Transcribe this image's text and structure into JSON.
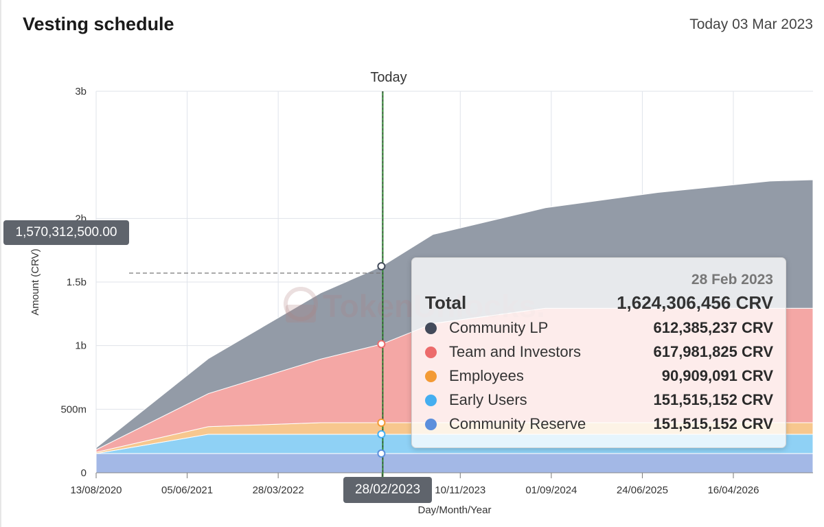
{
  "header": {
    "title": "Vesting schedule",
    "today": "Today 03 Mar 2023"
  },
  "chart_data": {
    "type": "area",
    "stacked": true,
    "xlabel": "Day/Month/Year",
    "ylabel": "Amount (CRV)",
    "ylim": [
      0,
      3000000000
    ],
    "grid": true,
    "y_ticks": [
      {
        "value": 0,
        "label": "0"
      },
      {
        "value": 500000000,
        "label": "500m"
      },
      {
        "value": 1000000000,
        "label": "1b"
      },
      {
        "value": 1500000000,
        "label": "1.5b"
      },
      {
        "value": 2000000000,
        "label": "2b"
      },
      {
        "value": 3000000000,
        "label": "3b"
      }
    ],
    "x_ticks": [
      "13/08/2020",
      "05/06/2021",
      "28/03/2022",
      "28/02/2023",
      "10/11/2023",
      "01/09/2024",
      "24/06/2025",
      "16/04/2026"
    ],
    "x": [
      "2020-08-13",
      "2021-08-13",
      "2022-08-13",
      "2023-02-28",
      "2023-08-13",
      "2024-08-13",
      "2025-08-13",
      "2026-08-13",
      "2026-12-31"
    ],
    "series": [
      {
        "name": "Community Reserve",
        "color": "#a3b8e6",
        "values": [
          151515152,
          151515152,
          151515152,
          151515152,
          151515152,
          151515152,
          151515152,
          151515152,
          151515152
        ]
      },
      {
        "name": "Early Users",
        "color": "#8fd1f5",
        "values": [
          0,
          151515152,
          151515152,
          151515152,
          151515152,
          151515152,
          151515152,
          151515152,
          151515152
        ]
      },
      {
        "name": "Employees",
        "color": "#f7c78e",
        "values": [
          10000000,
          60000000,
          90909091,
          90909091,
          90909091,
          90909091,
          90909091,
          90909091,
          90909091
        ]
      },
      {
        "name": "Team and Investors",
        "color": "#f4a7a5",
        "values": [
          20000000,
          260000000,
          500000000,
          617981825,
          780000000,
          900000000,
          900000000,
          900000000,
          900000000
        ]
      },
      {
        "name": "Community LP",
        "color": "#939ba7",
        "values": [
          15000000,
          275000000,
          520000000,
          612385237,
          700000000,
          790000000,
          910000000,
          1000000000,
          1010000000
        ]
      }
    ],
    "today_marker": {
      "label": "Today",
      "date": "2023-03-03"
    },
    "crosshair": {
      "x_label": "28/02/2023",
      "y_label": "1,570,312,500.00",
      "y_value": 1570312500
    },
    "tooltip": {
      "date": "28 Feb 2023",
      "total_label": "Total",
      "total_value": "1,624,306,456 CRV",
      "rows": [
        {
          "name": "Community LP",
          "value": "612,385,237 CRV",
          "color": "#424a5a"
        },
        {
          "name": "Team and Investors",
          "value": "617,981,825 CRV",
          "color": "#ec6b6b"
        },
        {
          "name": "Employees",
          "value": "90,909,091 CRV",
          "color": "#f39a34"
        },
        {
          "name": "Early Users",
          "value": "151,515,152 CRV",
          "color": "#44aef0"
        },
        {
          "name": "Community Reserve",
          "value": "151,515,152 CRV",
          "color": "#5b8fdc"
        }
      ]
    },
    "watermark": "TokenUnlocks."
  }
}
